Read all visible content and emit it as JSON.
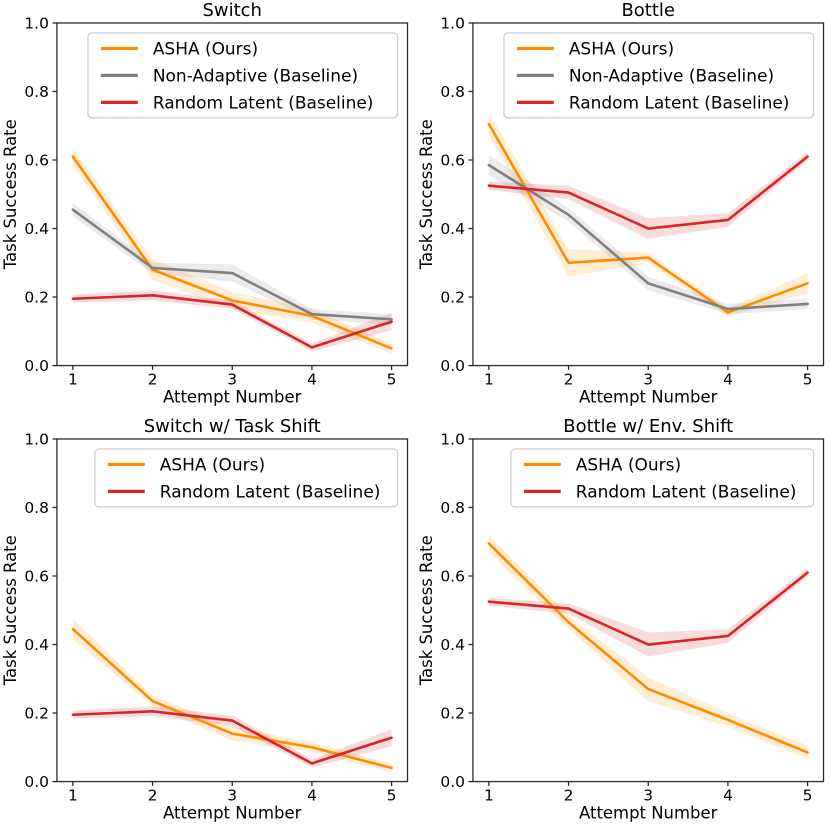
{
  "page": {
    "background": "#ffffff"
  },
  "colors": {
    "asha": "#FF8C00",
    "non_adaptive": "#808080",
    "random_latent": "#D62728",
    "band_opacity": 0.16,
    "spine": "#2b2b2b",
    "text": "#000000",
    "legend_border": "#cccccc",
    "legend_fill": "#ffffff"
  },
  "chart_data": [
    {
      "id": "switch",
      "type": "line",
      "title": "Switch",
      "xlabel": "Attempt Number",
      "ylabel": "Task Success Rate",
      "x": [
        1,
        2,
        3,
        4,
        5
      ],
      "xlim": [
        0.8,
        5.2
      ],
      "ylim": [
        0,
        1
      ],
      "xtick_labels": [
        "1",
        "2",
        "3",
        "4",
        "5"
      ],
      "ytick_values": [
        0.0,
        0.2,
        0.4,
        0.6,
        0.8,
        1.0
      ],
      "ytick_labels": [
        "0.0",
        "0.2",
        "0.4",
        "0.6",
        "0.8",
        "1.0"
      ],
      "grid": false,
      "legend_position": "upper right",
      "series": [
        {
          "name": "ASHA (Ours)",
          "color": "asha",
          "values": [
            0.61,
            0.28,
            0.19,
            0.145,
            0.05
          ],
          "band": [
            0.025,
            0.03,
            0.025,
            0.02,
            0.015
          ]
        },
        {
          "name": "Non-Adaptive (Baseline)",
          "color": "non_adaptive",
          "values": [
            0.455,
            0.285,
            0.27,
            0.15,
            0.135
          ],
          "band": [
            0.02,
            0.015,
            0.025,
            0.015,
            0.015
          ]
        },
        {
          "name": "Random Latent (Baseline)",
          "color": "random_latent",
          "values": [
            0.195,
            0.205,
            0.178,
            0.053,
            0.128
          ],
          "band": [
            0.012,
            0.015,
            0.012,
            0.012,
            0.025
          ]
        }
      ]
    },
    {
      "id": "bottle",
      "type": "line",
      "title": "Bottle",
      "xlabel": "Attempt Number",
      "ylabel": "Task Success Rate",
      "x": [
        1,
        2,
        3,
        4,
        5
      ],
      "xlim": [
        0.8,
        5.2
      ],
      "ylim": [
        0,
        1
      ],
      "xtick_labels": [
        "1",
        "2",
        "3",
        "4",
        "5"
      ],
      "ytick_values": [
        0.0,
        0.2,
        0.4,
        0.6,
        0.8,
        1.0
      ],
      "ytick_labels": [
        "0.0",
        "0.2",
        "0.4",
        "0.6",
        "0.8",
        "1.0"
      ],
      "grid": false,
      "legend_position": "upper right",
      "series": [
        {
          "name": "ASHA (Ours)",
          "color": "asha",
          "values": [
            0.705,
            0.3,
            0.315,
            0.155,
            0.24
          ],
          "band": [
            0.035,
            0.04,
            0.015,
            0.012,
            0.03
          ]
        },
        {
          "name": "Non-Adaptive (Baseline)",
          "color": "non_adaptive",
          "values": [
            0.585,
            0.44,
            0.24,
            0.165,
            0.18
          ],
          "band": [
            0.03,
            0.02,
            0.02,
            0.015,
            0.015
          ]
        },
        {
          "name": "Random Latent (Baseline)",
          "color": "random_latent",
          "values": [
            0.525,
            0.505,
            0.4,
            0.425,
            0.61
          ],
          "band": [
            0.012,
            0.02,
            0.03,
            0.02,
            0.012
          ]
        }
      ]
    },
    {
      "id": "switch-task-shift",
      "type": "line",
      "title": "Switch w/ Task Shift",
      "xlabel": "Attempt Number",
      "ylabel": "Task Success Rate",
      "x": [
        1,
        2,
        3,
        4,
        5
      ],
      "xlim": [
        0.8,
        5.2
      ],
      "ylim": [
        0,
        1
      ],
      "xtick_labels": [
        "1",
        "2",
        "3",
        "4",
        "5"
      ],
      "ytick_values": [
        0.0,
        0.2,
        0.4,
        0.6,
        0.8,
        1.0
      ],
      "ytick_labels": [
        "0.0",
        "0.2",
        "0.4",
        "0.6",
        "0.8",
        "1.0"
      ],
      "grid": false,
      "legend_position": "upper right",
      "series": [
        {
          "name": "ASHA (Ours)",
          "color": "asha",
          "values": [
            0.445,
            0.235,
            0.14,
            0.1,
            0.04
          ],
          "band": [
            0.03,
            0.015,
            0.02,
            0.015,
            0.012
          ]
        },
        {
          "name": "Random Latent (Baseline)",
          "color": "random_latent",
          "values": [
            0.195,
            0.205,
            0.178,
            0.053,
            0.128
          ],
          "band": [
            0.012,
            0.015,
            0.015,
            0.012,
            0.025
          ]
        }
      ]
    },
    {
      "id": "bottle-env-shift",
      "type": "line",
      "title": "Bottle w/ Env. Shift",
      "xlabel": "Attempt Number",
      "ylabel": "Task Success Rate",
      "x": [
        1,
        2,
        3,
        4,
        5
      ],
      "xlim": [
        0.8,
        5.2
      ],
      "ylim": [
        0,
        1
      ],
      "xtick_labels": [
        "1",
        "2",
        "3",
        "4",
        "5"
      ],
      "ytick_values": [
        0.0,
        0.2,
        0.4,
        0.6,
        0.8,
        1.0
      ],
      "ytick_labels": [
        "0.0",
        "0.2",
        "0.4",
        "0.6",
        "0.8",
        "1.0"
      ],
      "grid": false,
      "legend_position": "upper right",
      "series": [
        {
          "name": "ASHA (Ours)",
          "color": "asha",
          "values": [
            0.695,
            0.465,
            0.27,
            0.18,
            0.085
          ],
          "band": [
            0.025,
            0.02,
            0.035,
            0.02,
            0.02
          ]
        },
        {
          "name": "Random Latent (Baseline)",
          "color": "random_latent",
          "values": [
            0.525,
            0.505,
            0.4,
            0.425,
            0.61
          ],
          "band": [
            0.012,
            0.015,
            0.035,
            0.02,
            0.012
          ]
        }
      ]
    }
  ]
}
